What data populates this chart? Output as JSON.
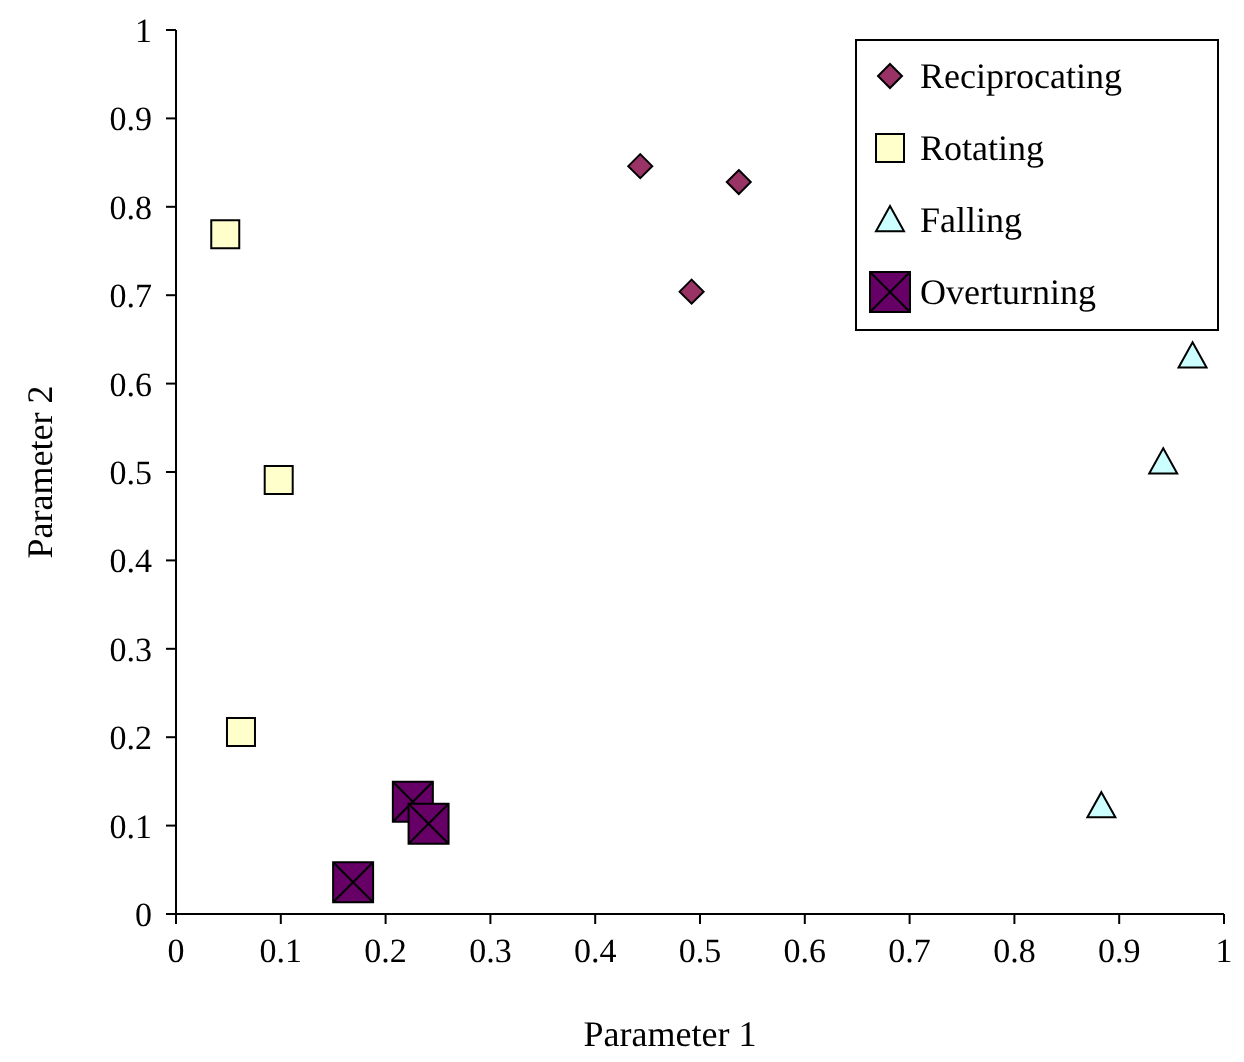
{
  "chart_data": {
    "type": "scatter",
    "xlabel": "Parameter 1",
    "ylabel": "Parameter 2",
    "xlim": [
      0,
      1
    ],
    "ylim": [
      0,
      1
    ],
    "xticks": [
      0,
      0.1,
      0.2,
      0.3,
      0.4,
      0.5,
      0.6,
      0.7,
      0.8,
      0.9,
      1
    ],
    "yticks": [
      0,
      0.1,
      0.2,
      0.3,
      0.4,
      0.5,
      0.6,
      0.7,
      0.8,
      0.9,
      1
    ],
    "legend": "top right",
    "series": [
      {
        "name": "Reciprocating",
        "color": "#993366",
        "marker": "diamond",
        "x": [
          0.443,
          0.537,
          0.492
        ],
        "values": [
          0.846,
          0.828,
          0.704
        ]
      },
      {
        "name": "Rotating",
        "color": "#ffffcc",
        "marker": "square",
        "x": [
          0.047,
          0.098,
          0.062
        ],
        "values": [
          0.769,
          0.491,
          0.206
        ]
      },
      {
        "name": "Falling",
        "color": "#ccffff",
        "marker": "triangle",
        "x": [
          0.97,
          0.942,
          0.883
        ],
        "values": [
          0.631,
          0.511,
          0.122
        ]
      },
      {
        "name": "Overturning",
        "color": "#660066",
        "marker": "cross",
        "x": [
          0.226,
          0.241,
          0.169
        ],
        "values": [
          0.127,
          0.102,
          0.036
        ]
      }
    ]
  }
}
